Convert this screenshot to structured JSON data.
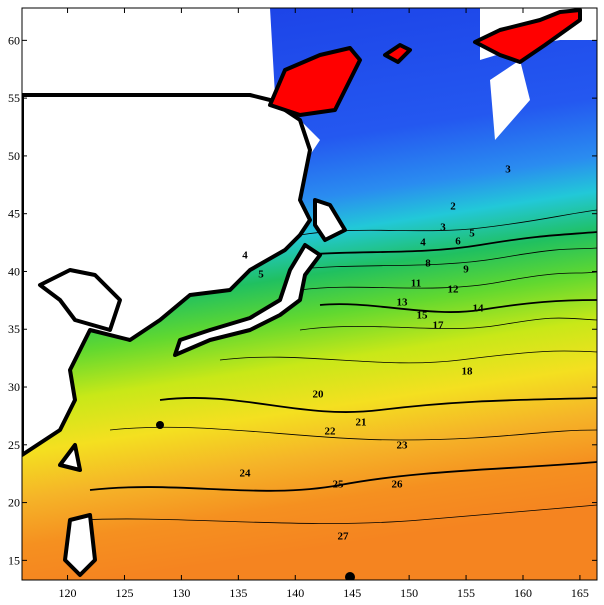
{
  "map": {
    "xlim": [
      116,
      166.5
    ],
    "ylim": [
      13.3,
      62.8
    ],
    "xticks": [
      120,
      125,
      130,
      135,
      140,
      145,
      150,
      155,
      160,
      165
    ],
    "yticks": [
      15,
      20,
      25,
      30,
      35,
      40,
      45,
      50,
      55,
      60
    ],
    "contour_labels": [
      3,
      2,
      3,
      4,
      5,
      6,
      8,
      9,
      11,
      12,
      13,
      14,
      15,
      17,
      18,
      20,
      21,
      22,
      23,
      24,
      25,
      26,
      27,
      4,
      5
    ]
  }
}
